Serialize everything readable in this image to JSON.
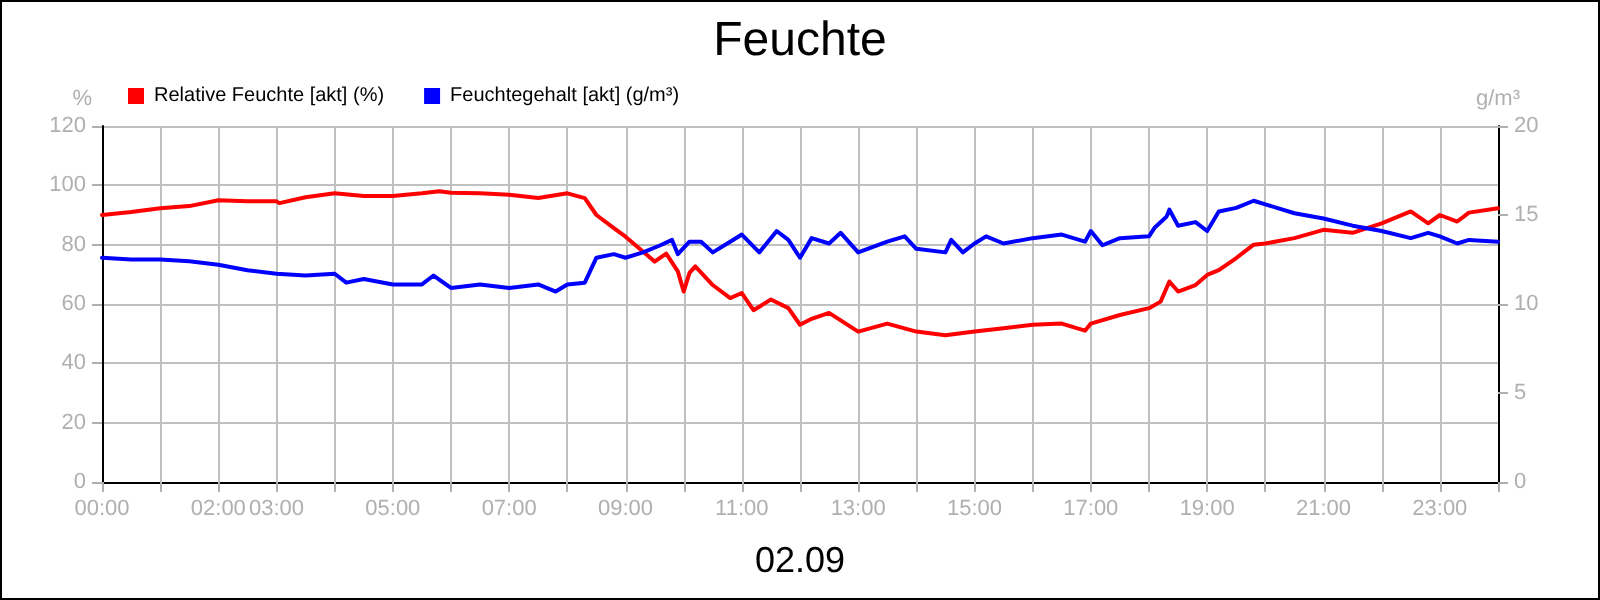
{
  "chart_data": {
    "type": "line",
    "title": "Feuchte",
    "xlabel": "02.09",
    "ylabel": "%",
    "y2label": "g/m³",
    "xlim": [
      0,
      24
    ],
    "xticks": [
      {
        "value": 0,
        "label": "00:00"
      },
      {
        "value": 1,
        "label": null
      },
      {
        "value": 2,
        "label": "02:00"
      },
      {
        "value": 3,
        "label": "03:00"
      },
      {
        "value": 4,
        "label": null
      },
      {
        "value": 5,
        "label": "05:00"
      },
      {
        "value": 6,
        "label": null
      },
      {
        "value": 7,
        "label": "07:00"
      },
      {
        "value": 8,
        "label": null
      },
      {
        "value": 9,
        "label": "09:00"
      },
      {
        "value": 10,
        "label": null
      },
      {
        "value": 11,
        "label": "11:00"
      },
      {
        "value": 12,
        "label": null
      },
      {
        "value": 13,
        "label": "13:00"
      },
      {
        "value": 14,
        "label": null
      },
      {
        "value": 15,
        "label": "15:00"
      },
      {
        "value": 16,
        "label": null
      },
      {
        "value": 17,
        "label": "17:00"
      },
      {
        "value": 18,
        "label": null
      },
      {
        "value": 19,
        "label": "19:00"
      },
      {
        "value": 20,
        "label": null
      },
      {
        "value": 21,
        "label": "21:00"
      },
      {
        "value": 22,
        "label": null
      },
      {
        "value": 23,
        "label": "23:00"
      },
      {
        "value": 24,
        "label": null
      }
    ],
    "ylim": [
      0,
      120
    ],
    "yticks": [
      0,
      20,
      40,
      60,
      80,
      100,
      120
    ],
    "y2lim": [
      0,
      20
    ],
    "y2ticks": [
      0,
      5,
      10,
      15,
      20
    ],
    "grid": true,
    "legend": "top left",
    "marker": "none",
    "line_style": "solid",
    "series": [
      {
        "name": "Relative Feuchte [akt] (%)",
        "color": "#ff0000",
        "x": [
          0,
          0.5,
          1,
          1.5,
          2,
          2.5,
          3,
          3.05,
          3.5,
          4,
          4.5,
          5,
          5.5,
          5.8,
          6,
          6.5,
          7,
          7.5,
          8,
          8.3,
          8.5,
          8.8,
          9,
          9.3,
          9.5,
          9.7,
          9.9,
          10,
          10.1,
          10.2,
          10.5,
          10.8,
          11,
          11.2,
          11.5,
          11.8,
          12,
          12.2,
          12.5,
          13,
          13.5,
          14,
          14.5,
          15,
          15.5,
          16,
          16.5,
          16.9,
          17,
          17.5,
          18,
          18.2,
          18.35,
          18.5,
          18.8,
          19,
          19.2,
          19.5,
          19.8,
          20,
          20.5,
          21,
          21.5,
          22,
          22.5,
          22.8,
          23,
          23.3,
          23.5,
          24
        ],
        "values": [
          90,
          91,
          92.3,
          93,
          95,
          94.6,
          94.6,
          94,
          96,
          97.3,
          96.4,
          96.4,
          97.3,
          98,
          97.5,
          97.3,
          96.8,
          95.7,
          97.3,
          95.7,
          90,
          85.6,
          82.7,
          77.7,
          74.3,
          77,
          71,
          64.2,
          70.5,
          72.7,
          66.4,
          62,
          63.7,
          57.9,
          61.5,
          58.6,
          53,
          55,
          57,
          50.7,
          53.4,
          50.7,
          49.5,
          50.7,
          51.8,
          53,
          53.4,
          51,
          53.4,
          56.3,
          58.6,
          60.8,
          67.6,
          64.2,
          66.4,
          69.8,
          71.4,
          75.5,
          80,
          80.4,
          82.2,
          85,
          84,
          87.2,
          91.2,
          87.2,
          90,
          87.8,
          90.8,
          92.3
        ]
      },
      {
        "name": "Feuchtegehalt [akt] (g/m³)",
        "color": "#0000ff",
        "axis": "y2",
        "x": [
          0,
          0.5,
          1,
          1.5,
          2,
          2.5,
          3,
          3.5,
          4,
          4.2,
          4.5,
          5,
          5.5,
          5.7,
          6,
          6.5,
          7,
          7.5,
          7.8,
          8,
          8.3,
          8.5,
          8.8,
          9,
          9.3,
          9.6,
          9.8,
          9.9,
          10.1,
          10.3,
          10.5,
          10.8,
          11,
          11.3,
          11.6,
          11.8,
          12,
          12.2,
          12.5,
          12.7,
          13,
          13.5,
          13.8,
          14,
          14.5,
          14.6,
          14.8,
          15,
          15.2,
          15.5,
          16,
          16.5,
          16.9,
          17,
          17.2,
          17.5,
          18,
          18.1,
          18.3,
          18.35,
          18.5,
          18.8,
          19,
          19.2,
          19.5,
          19.8,
          20,
          20.5,
          21,
          21.5,
          22,
          22.5,
          22.8,
          23,
          23.3,
          23.5,
          24
        ],
        "values": [
          12.6,
          12.5,
          12.5,
          12.4,
          12.2,
          11.9,
          11.7,
          11.6,
          11.7,
          11.2,
          11.4,
          11.1,
          11.1,
          11.6,
          10.9,
          11.1,
          10.9,
          11.1,
          10.7,
          11.1,
          11.2,
          12.6,
          12.8,
          12.6,
          12.9,
          13.3,
          13.6,
          12.8,
          13.5,
          13.5,
          12.9,
          13.5,
          13.9,
          12.9,
          14.1,
          13.6,
          12.6,
          13.7,
          13.4,
          14,
          12.9,
          13.5,
          13.8,
          13.1,
          12.9,
          13.6,
          12.9,
          13.4,
          13.8,
          13.4,
          13.7,
          13.9,
          13.5,
          14.1,
          13.3,
          13.7,
          13.8,
          14.3,
          14.9,
          15.3,
          14.4,
          14.6,
          14.1,
          15.2,
          15.4,
          15.8,
          15.6,
          15.1,
          14.8,
          14.4,
          14.1,
          13.7,
          14,
          13.8,
          13.4,
          13.6,
          13.5
        ]
      }
    ]
  }
}
